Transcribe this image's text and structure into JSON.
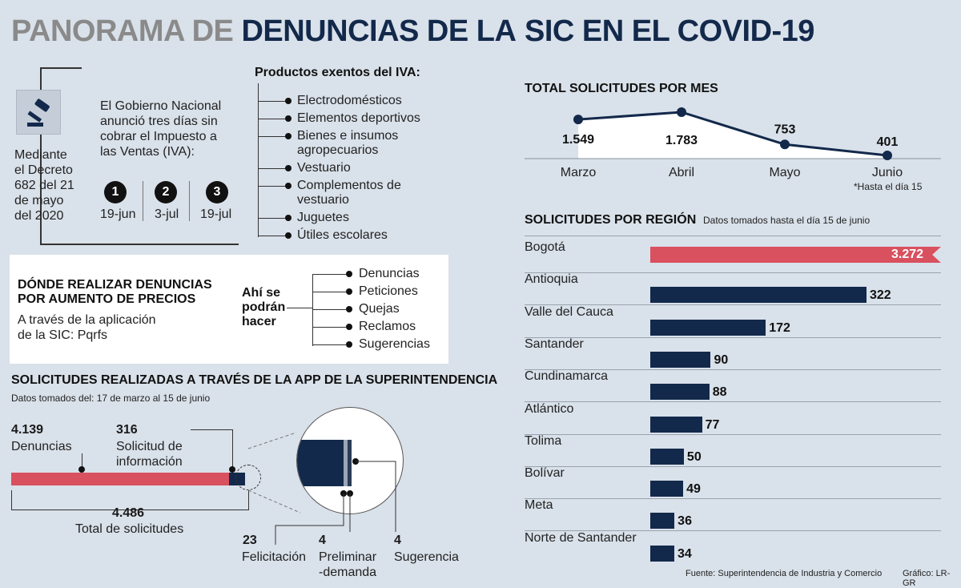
{
  "title": {
    "part1": "PANORAMA DE ",
    "part2": "DENUNCIAS DE LA",
    "part3": "SIC EN EL COVID-19"
  },
  "decree": {
    "text": [
      "Mediante",
      "el Decreto",
      "682 del 21",
      "de mayo",
      "del 2020"
    ],
    "announcement": [
      "El Gobierno Nacional",
      "anunció tres días sin",
      "cobrar el Impuesto a",
      "las Ventas (IVA):"
    ],
    "days": [
      {
        "num": "1",
        "date": "19-jun"
      },
      {
        "num": "2",
        "date": "3-jul"
      },
      {
        "num": "3",
        "date": "19-jul"
      }
    ]
  },
  "iva": {
    "heading": "Productos exentos del IVA:",
    "items": [
      "Electrodomésticos",
      "Elementos deportivos",
      "Bienes e insumos",
      "agropecuarios",
      "Vestuario",
      "Complementos de",
      "vestuario",
      "Juguetes",
      "Útiles escolares"
    ]
  },
  "where": {
    "heading1": "DÓNDE REALIZAR DENUNCIAS",
    "heading2": "POR AUMENTO DE PRECIOS",
    "sub1": "A través de la aplicación",
    "sub2": "de la SIC: Pqrfs",
    "label": [
      "Ahí se",
      "podrán",
      "hacer"
    ],
    "items": [
      "Denuncias",
      "Peticiones",
      "Quejas",
      "Reclamos",
      "Sugerencias"
    ]
  },
  "app": {
    "heading": "SOLICITUDES REALIZADAS A TRAVÉS DE LA APP DE LA SUPERINTENDENCIA",
    "sub": "Datos tomados del: 17 de marzo al 15 de junio",
    "denuncias_val": "4.139",
    "denuncias_label": "Denuncias",
    "info_val": "316",
    "info_label": [
      "Solicitud de",
      "información"
    ],
    "total_val": "4.486",
    "total_label": "Total de solicitudes",
    "fel_val": "23",
    "fel_label": "Felicitación",
    "pre_val": "4",
    "pre_label": [
      "Preliminar",
      "-demanda"
    ],
    "sug_val": "4",
    "sug_label": "Sugerencia"
  },
  "chart_data": [
    {
      "type": "line",
      "title": "TOTAL SOLICITUDES POR MES",
      "categories": [
        "Marzo",
        "Abril",
        "Mayo",
        "Junio"
      ],
      "values": [
        1549,
        1783,
        753,
        401
      ],
      "labels": [
        "1.549",
        "1.783",
        "753",
        "401"
      ],
      "note": "*Hasta el día 15"
    },
    {
      "type": "bar",
      "title": "SOLICITUDES POR REGIÓN",
      "subtitle": "Datos tomados hasta el día 15 de junio",
      "categories": [
        "Bogotá",
        "Antioquia",
        "Valle del Cauca",
        "Santander",
        "Cundinamarca",
        "Atlántico",
        "Tolima",
        "Bolívar",
        "Meta",
        "Norte de Santander"
      ],
      "values": [
        3272,
        322,
        172,
        90,
        88,
        77,
        50,
        49,
        36,
        34
      ],
      "labels": [
        "3.272",
        "322",
        "172",
        "90",
        "88",
        "77",
        "50",
        "49",
        "36",
        "34"
      ]
    }
  ],
  "colors": {
    "navy": "#13294b",
    "red": "#d9505f",
    "bg": "#d9e1ea"
  },
  "footer": {
    "source": "Fuente: Superintendencia de Industria y Comercio",
    "graphic": "Gráfico: LR-GR"
  },
  "icons": {
    "decree": "gavel-icon"
  }
}
